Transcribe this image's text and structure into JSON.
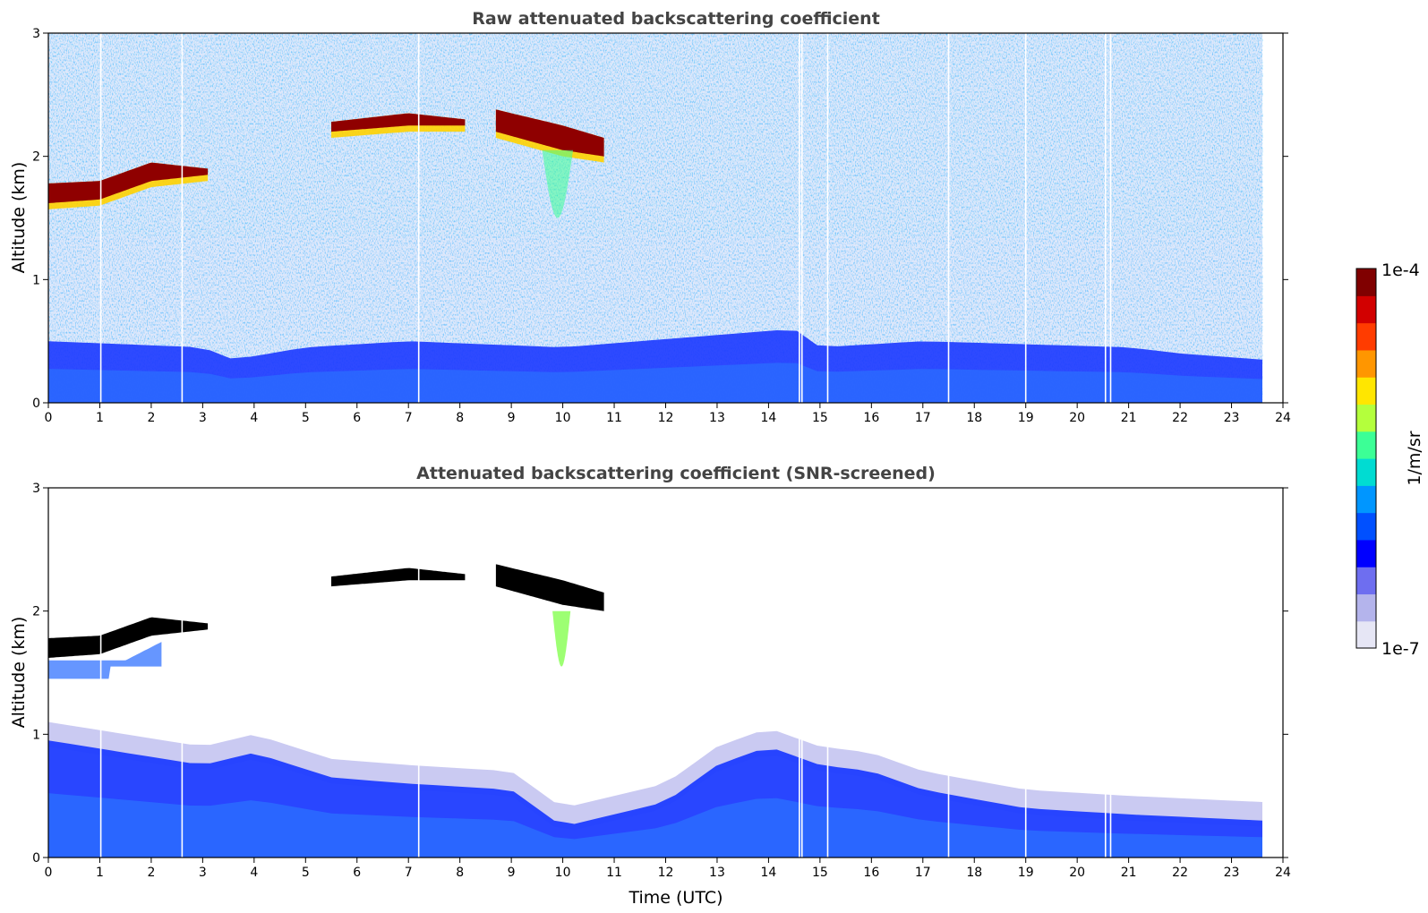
{
  "chart_data": [
    {
      "type": "heatmap",
      "title": "Raw attenuated backscattering coefficient",
      "xlabel": "",
      "ylabel": "Altitude (km)",
      "xlim": [
        0,
        24
      ],
      "ylim": [
        0,
        3
      ],
      "x_ticks": [
        "0",
        "1",
        "2",
        "3",
        "4",
        "5",
        "6",
        "7",
        "8",
        "9",
        "10",
        "11",
        "12",
        "13",
        "14",
        "15",
        "16",
        "17",
        "18",
        "19",
        "20",
        "21",
        "22",
        "23",
        "24"
      ],
      "y_ticks": [
        "0",
        "1",
        "2",
        "3"
      ],
      "data_end_time": 23.6,
      "boundary_layer_top_km": [
        [
          0,
          0.5
        ],
        [
          3,
          0.45
        ],
        [
          3.6,
          0.35
        ],
        [
          5,
          0.45
        ],
        [
          7,
          0.5
        ],
        [
          10,
          0.45
        ],
        [
          13,
          0.55
        ],
        [
          14.5,
          0.6
        ],
        [
          15,
          0.45
        ],
        [
          17,
          0.5
        ],
        [
          21,
          0.45
        ],
        [
          22,
          0.4
        ],
        [
          23.6,
          0.35
        ]
      ],
      "cloud_layers": [
        {
          "start": 0.0,
          "end": 3.1,
          "base_km": [
            [
              0,
              1.62
            ],
            [
              1,
              1.65
            ],
            [
              2,
              1.8
            ],
            [
              3.1,
              1.85
            ]
          ],
          "top_km": [
            [
              0,
              1.78
            ],
            [
              1,
              1.8
            ],
            [
              2,
              1.95
            ],
            [
              3.1,
              1.9
            ]
          ]
        },
        {
          "start": 5.5,
          "end": 8.1,
          "base_km": [
            [
              5.5,
              2.2
            ],
            [
              7,
              2.25
            ],
            [
              8.1,
              2.25
            ]
          ],
          "top_km": [
            [
              5.5,
              2.28
            ],
            [
              7,
              2.35
            ],
            [
              8.1,
              2.3
            ]
          ]
        },
        {
          "start": 8.7,
          "end": 10.8,
          "base_km": [
            [
              8.7,
              2.2
            ],
            [
              10,
              2.05
            ],
            [
              10.8,
              2.0
            ]
          ],
          "top_km": [
            [
              8.7,
              2.38
            ],
            [
              10,
              2.25
            ],
            [
              10.8,
              2.15
            ]
          ]
        }
      ],
      "missing_profiles_utc": [
        1.02,
        2.6,
        7.2,
        14.6,
        14.65,
        15.15,
        17.5,
        19.0,
        20.55,
        20.65
      ]
    },
    {
      "type": "heatmap",
      "title": "Attenuated backscattering coefficient (SNR-screened)",
      "xlabel": "Time (UTC)",
      "ylabel": "Altitude (km)",
      "xlim": [
        0,
        24
      ],
      "ylim": [
        0,
        3
      ],
      "x_ticks": [
        "0",
        "1",
        "2",
        "3",
        "4",
        "5",
        "6",
        "7",
        "8",
        "9",
        "10",
        "11",
        "12",
        "13",
        "14",
        "15",
        "16",
        "17",
        "18",
        "19",
        "20",
        "21",
        "22",
        "23",
        "24"
      ],
      "y_ticks": [
        "0",
        "1",
        "2",
        "3"
      ],
      "data_end_time": 23.6,
      "signal_top_km": [
        [
          0,
          1.1
        ],
        [
          3,
          0.9
        ],
        [
          4,
          1.0
        ],
        [
          5.5,
          0.8
        ],
        [
          7,
          0.75
        ],
        [
          9,
          0.7
        ],
        [
          10,
          0.4
        ],
        [
          11,
          0.5
        ],
        [
          12,
          0.6
        ],
        [
          13,
          0.9
        ],
        [
          14,
          1.05
        ],
        [
          15,
          0.9
        ],
        [
          16,
          0.85
        ],
        [
          17,
          0.7
        ],
        [
          19,
          0.55
        ],
        [
          21,
          0.5
        ],
        [
          23.6,
          0.45
        ]
      ]
    }
  ],
  "colorbar": {
    "label": "1/m/sr",
    "max_label": "1e-4",
    "min_label": "1e-7",
    "colors": [
      "#e6e6f5",
      "#b4b4ec",
      "#6e6ef0",
      "#0000ff",
      "#0050ff",
      "#0096ff",
      "#00dcd2",
      "#3cff96",
      "#b4ff3c",
      "#ffe600",
      "#ff9600",
      "#ff3c00",
      "#d20000",
      "#800000"
    ]
  }
}
